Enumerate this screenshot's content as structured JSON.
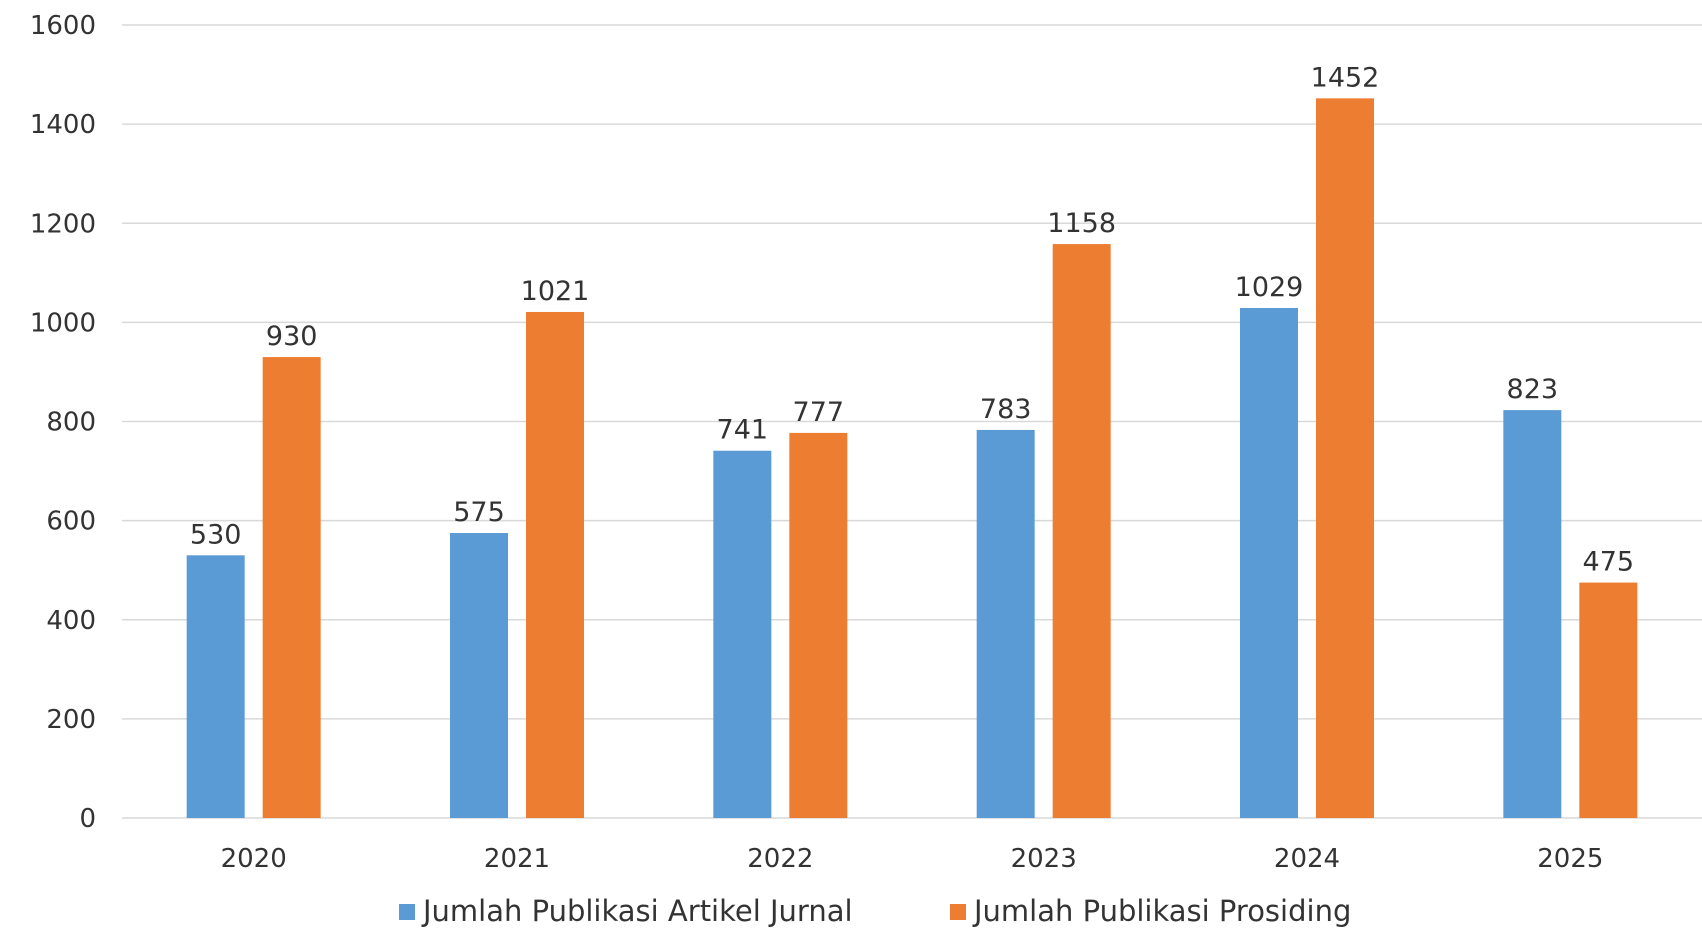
{
  "chart_data": {
    "type": "bar",
    "title": "",
    "xlabel": "",
    "ylabel": "",
    "ylim": [
      0,
      1600
    ],
    "yticks": [
      0,
      200,
      400,
      600,
      800,
      1000,
      1200,
      1400,
      1600
    ],
    "grid": true,
    "legend_position": "bottom",
    "categories": [
      "2020",
      "2021",
      "2022",
      "2023",
      "2024",
      "2025"
    ],
    "series": [
      {
        "name": "Jumlah Publikasi Artikel Jurnal",
        "color": "#5b9bd5",
        "values": [
          530,
          575,
          741,
          783,
          1029,
          823
        ]
      },
      {
        "name": "Jumlah Publikasi Prosiding",
        "color": "#ed7d31",
        "values": [
          930,
          1021,
          777,
          1158,
          1452,
          475
        ]
      }
    ]
  }
}
